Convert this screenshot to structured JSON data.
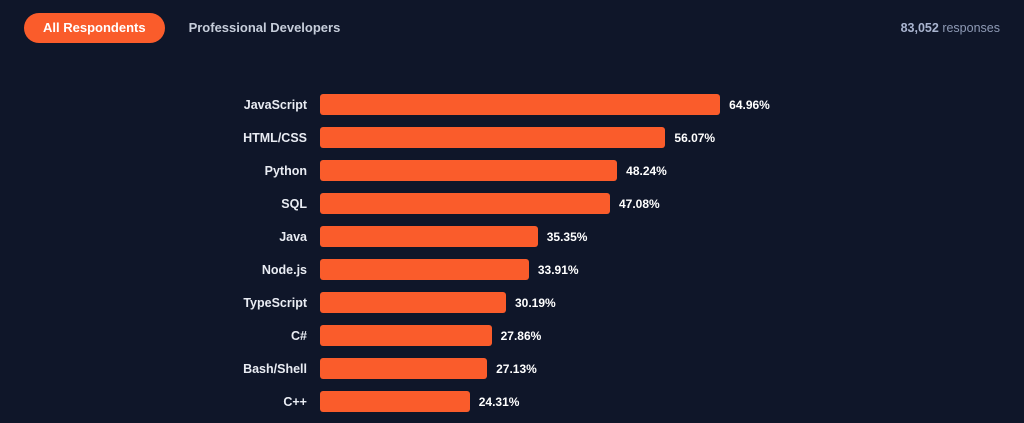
{
  "colors": {
    "background": "#0f1629",
    "accent_orange": "#fa5c2b",
    "label_text": "#e9ecf3",
    "muted_text": "#8e9ab5"
  },
  "header": {
    "tabs": [
      {
        "label": "All Respondents",
        "active": true
      },
      {
        "label": "Professional Developers",
        "active": false
      }
    ],
    "responses_count": "83,052",
    "responses_label": "responses"
  },
  "chart_data": {
    "type": "bar",
    "orientation": "horizontal",
    "title": "",
    "xlabel": "",
    "ylabel": "",
    "xlim": [
      0,
      100
    ],
    "grid": false,
    "legend": false,
    "bar_color": "#fa5c2b",
    "categories": [
      "JavaScript",
      "HTML/CSS",
      "Python",
      "SQL",
      "Java",
      "Node.js",
      "TypeScript",
      "C#",
      "Bash/Shell",
      "C++"
    ],
    "values": [
      64.96,
      56.07,
      48.24,
      47.08,
      35.35,
      33.91,
      30.19,
      27.86,
      27.13,
      24.31
    ],
    "value_labels": [
      "64.96%",
      "56.07%",
      "48.24%",
      "47.08%",
      "35.35%",
      "33.91%",
      "30.19%",
      "27.86%",
      "27.13%",
      "24.31%"
    ]
  }
}
